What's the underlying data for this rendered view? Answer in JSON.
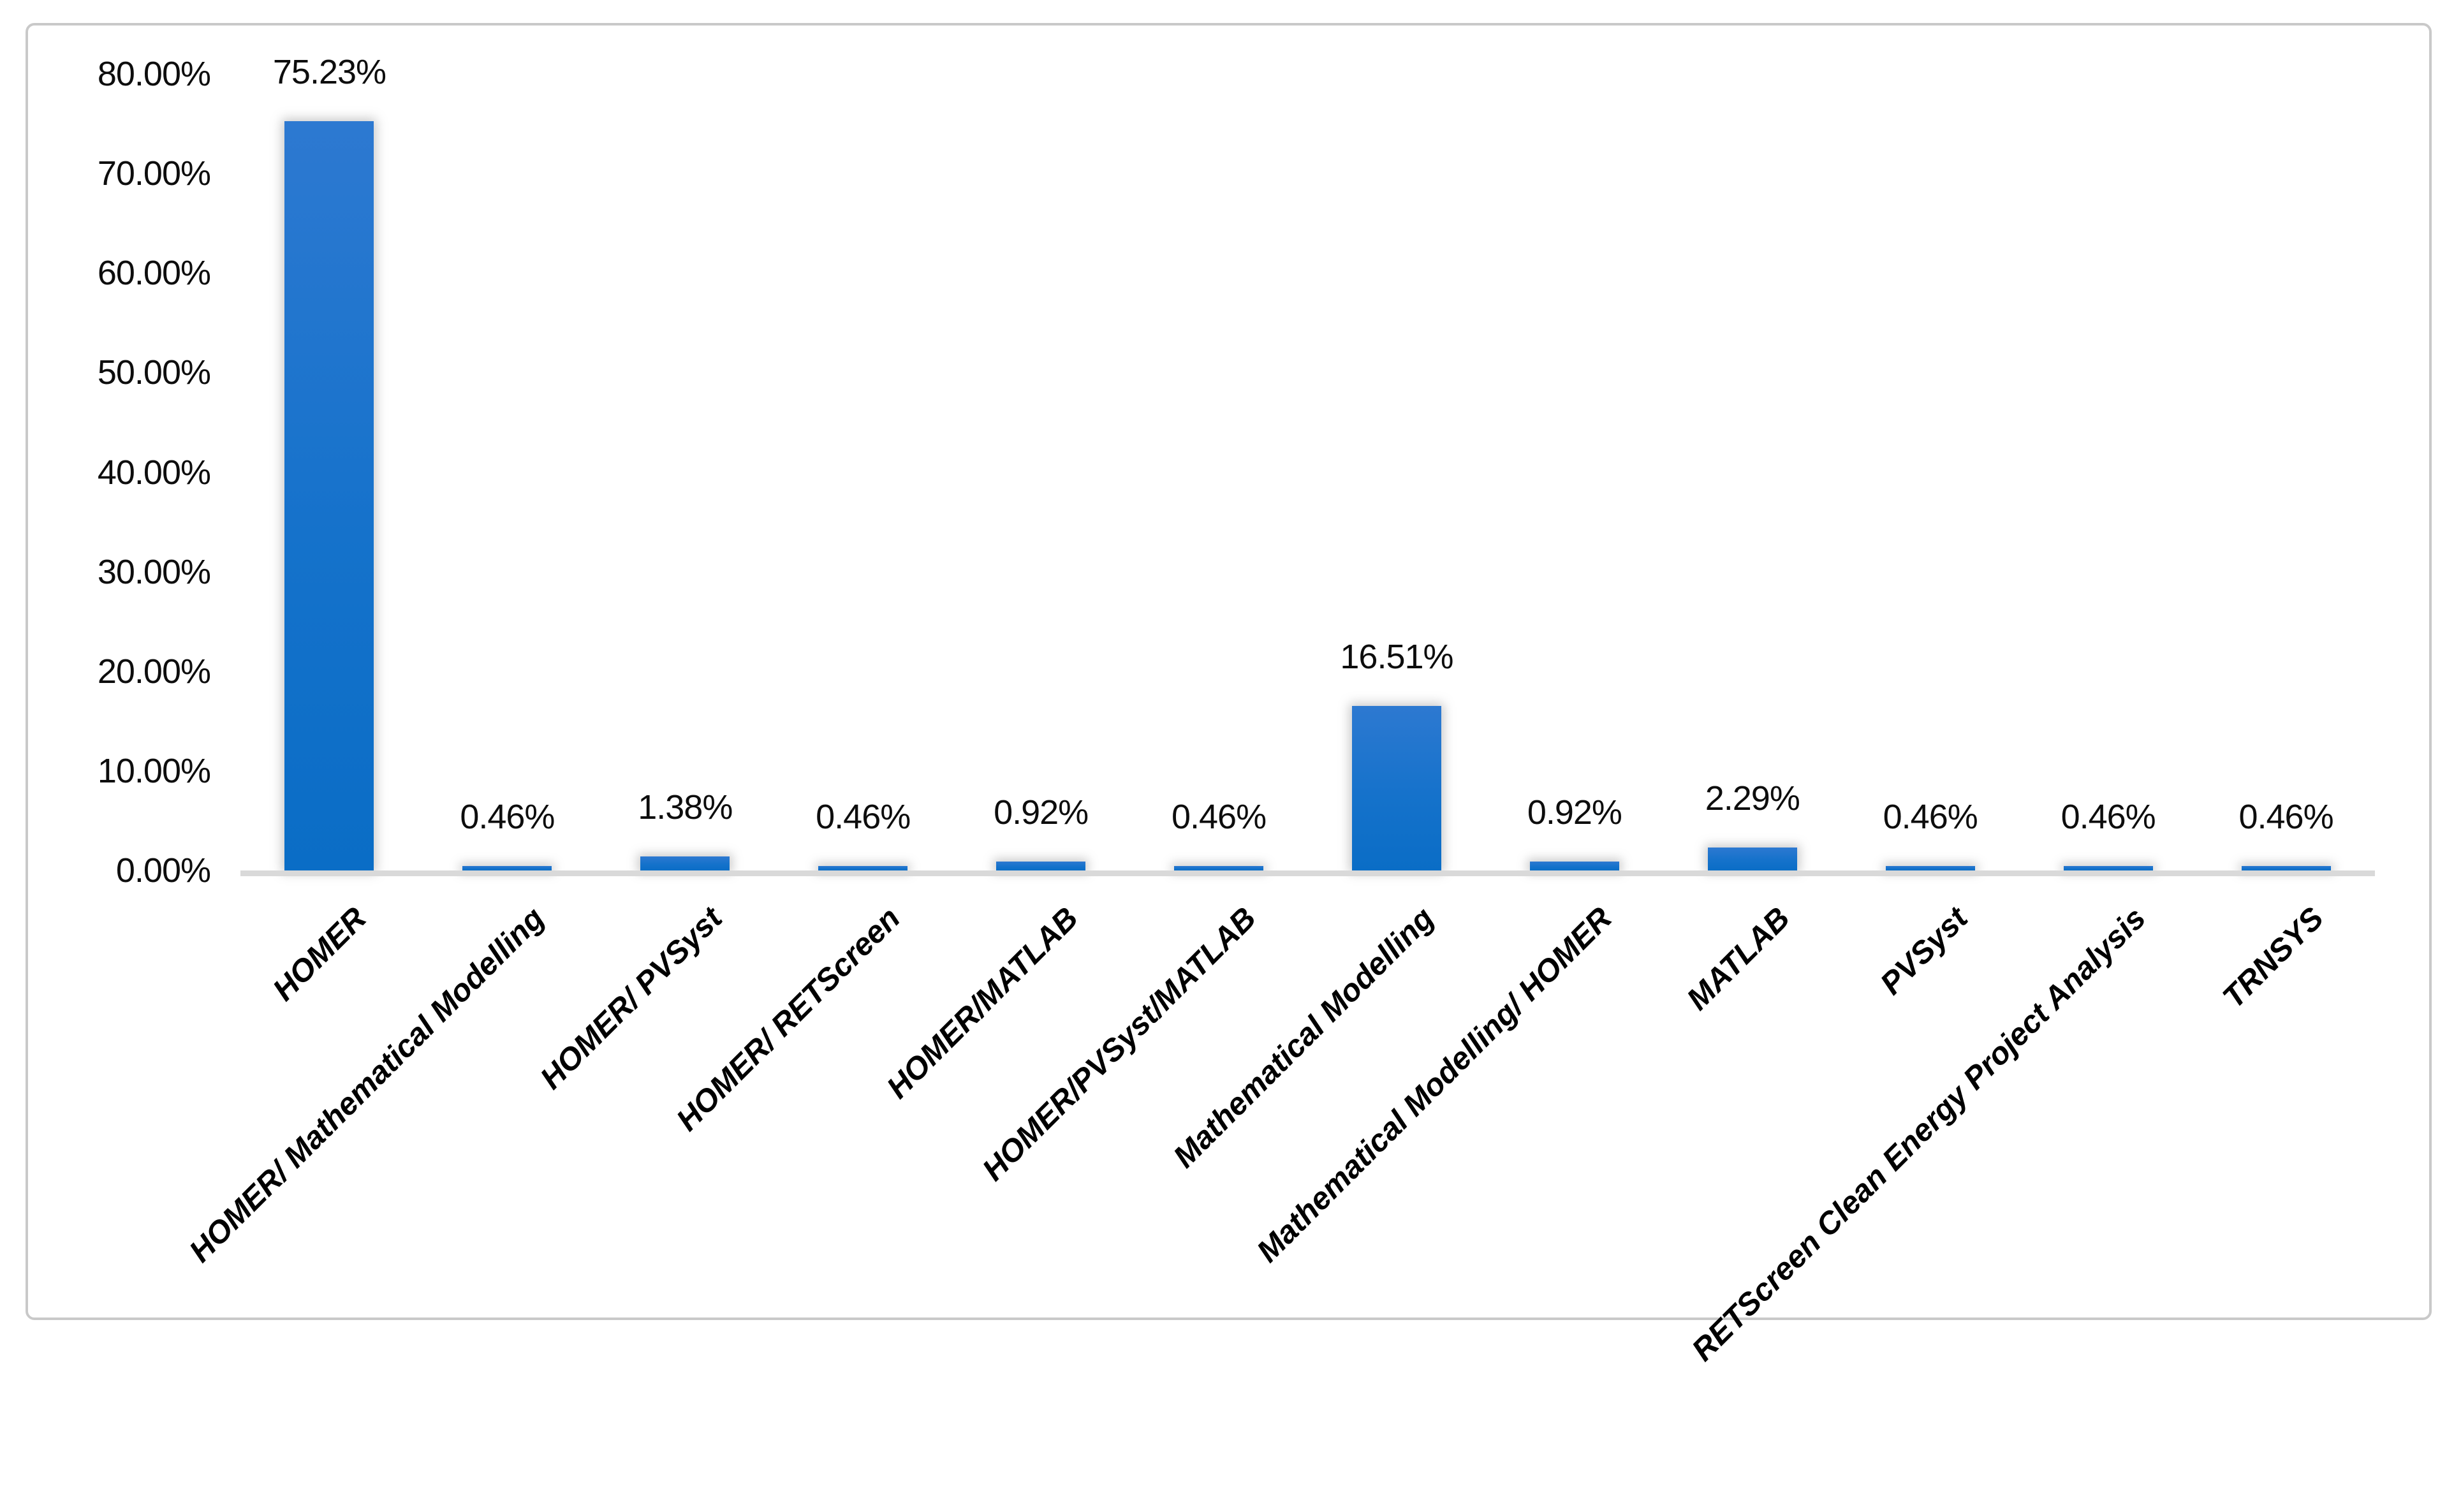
{
  "chart_data": {
    "type": "bar",
    "title": "",
    "xlabel": "",
    "ylabel": "",
    "categories": [
      "HOMER",
      "HOMER/ Mathematical Modelling",
      "HOMER/ PVSyst",
      "HOMER/ RETScreen",
      "HOMER/MATLAB",
      "HOMER/PVSyst/MATLAB",
      "Mathematical Modelling",
      "Mathematical Modelling/ HOMER",
      "MATLAB",
      "PVSyst",
      "RETScreen Clean Energy Project Analysis",
      "TRNSYS"
    ],
    "values": [
      75.23,
      0.46,
      1.38,
      0.46,
      0.92,
      0.46,
      16.51,
      0.92,
      2.29,
      0.46,
      0.46,
      0.46
    ],
    "data_labels": [
      "75.23%",
      "0.46%",
      "1.38%",
      "0.46%",
      "0.92%",
      "0.46%",
      "16.51%",
      "0.92%",
      "2.29%",
      "0.46%",
      "0.46%",
      "0.46%"
    ],
    "y_ticks": [
      "80.00%",
      "70.00%",
      "60.00%",
      "50.00%",
      "40.00%",
      "30.00%",
      "20.00%",
      "10.00%",
      "0.00%"
    ],
    "ylim": [
      0,
      80
    ],
    "y_tick_step": 10,
    "grid": false,
    "legend": "none",
    "bar_color_top": "#2d79d1",
    "bar_color_bottom": "#0a6dc6",
    "axis_line_color": "#d9d9d9",
    "label_color": "#0d0d0d",
    "category_label_style": "bold-italic-rotated-45"
  }
}
